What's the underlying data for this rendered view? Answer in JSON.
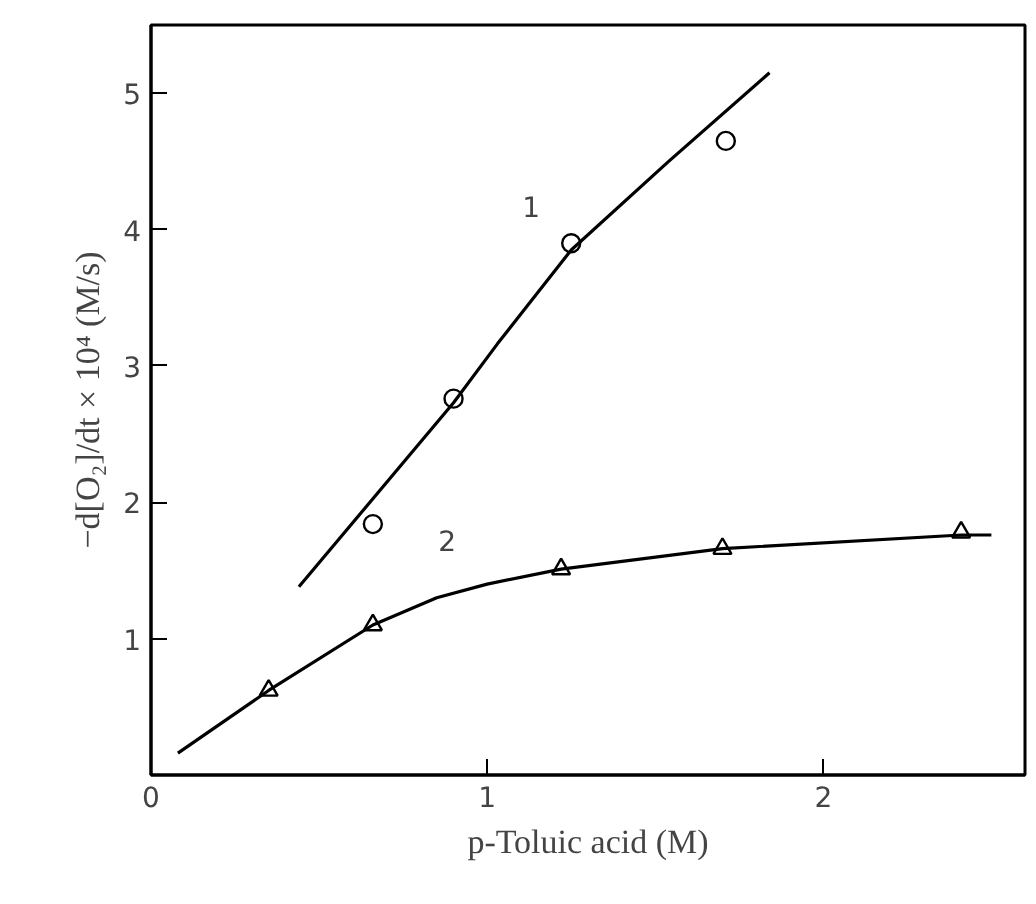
{
  "chart_data": {
    "type": "scatter",
    "xlabel": "p-Toluic acid (M)",
    "ylabel": "−d[O₂]/dt × 10⁴ (M/s)",
    "xlim": [
      0,
      2.6
    ],
    "ylim": [
      0,
      5.5
    ],
    "xticks": [
      0,
      1,
      2
    ],
    "yticks": [
      1,
      2,
      3,
      4,
      5
    ],
    "grid": false,
    "series": [
      {
        "marker": "circle",
        "color": "#000000",
        "x": [
          0.66,
          0.9,
          1.25,
          1.71
        ],
        "values": [
          1.84,
          2.76,
          3.9,
          4.65
        ]
      },
      {
        "type": "line",
        "name": "1",
        "marker": "none",
        "color": "#000000",
        "x": [
          0.44,
          0.9,
          1.03,
          1.25,
          1.54,
          1.84
        ],
        "values": [
          1.38,
          2.73,
          3.16,
          3.85,
          4.5,
          5.15
        ]
      },
      {
        "marker": "triangle",
        "color": "#000000",
        "x": [
          0.35,
          0.66,
          1.22,
          1.7,
          2.41
        ],
        "values": [
          0.62,
          1.1,
          1.51,
          1.66,
          1.78
        ]
      },
      {
        "type": "line",
        "name": "2",
        "marker": "none",
        "color": "#000000",
        "x": [
          0.08,
          0.35,
          0.66,
          0.85,
          1.0,
          1.22,
          1.7,
          2.41,
          2.5
        ],
        "values": [
          0.16,
          0.62,
          1.1,
          1.3,
          1.4,
          1.51,
          1.66,
          1.76,
          1.76
        ]
      }
    ]
  }
}
